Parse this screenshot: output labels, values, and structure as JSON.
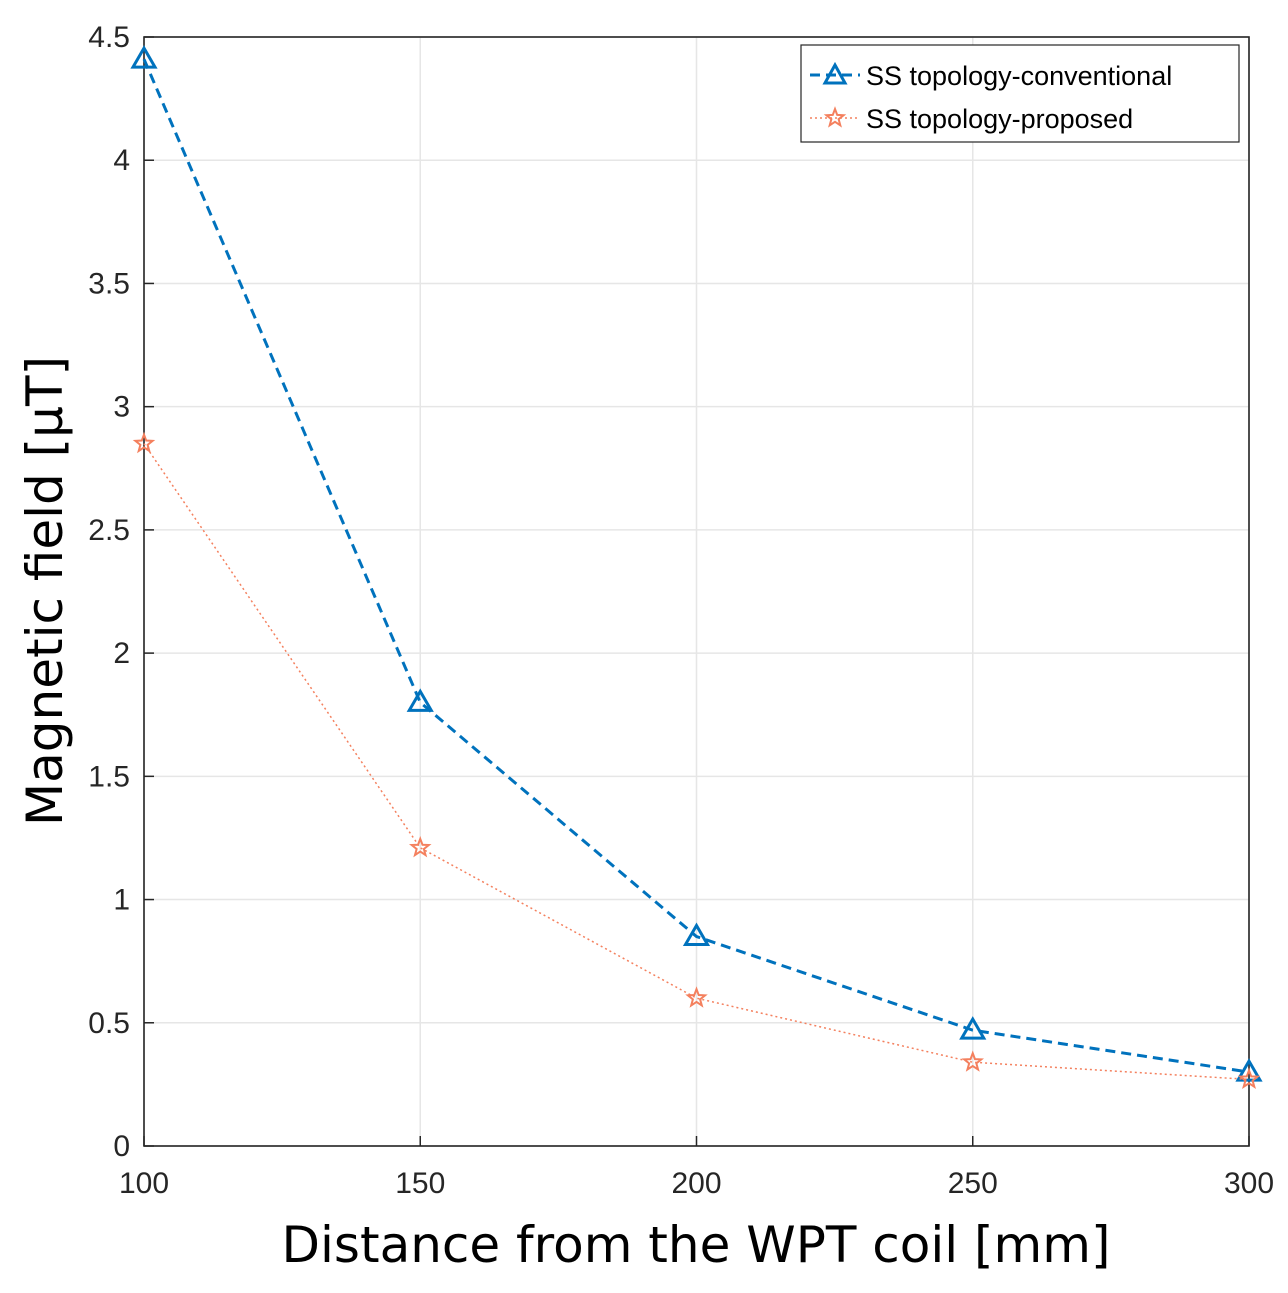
{
  "chart_data": {
    "type": "line",
    "title": "",
    "xlabel": "Distance from the WPT coil [mm]",
    "ylabel": "Magnetic field [μT]",
    "xlim": [
      100,
      300
    ],
    "ylim": [
      0,
      4.5
    ],
    "grid": true,
    "x": [
      100,
      150,
      200,
      250,
      300
    ],
    "xticks": [
      "100",
      "150",
      "200",
      "250",
      "300"
    ],
    "yticks": [
      "0",
      "0.5",
      "1",
      "1.5",
      "2",
      "2.5",
      "3",
      "3.5",
      "4",
      "4.5"
    ],
    "legend_position": "top-right",
    "series": [
      {
        "name": "SS topology-conventional",
        "values": [
          4.41,
          1.8,
          0.85,
          0.47,
          0.3
        ],
        "color": "#0072BD",
        "line_style": "dashed",
        "marker": "triangle"
      },
      {
        "name": "SS topology-proposed",
        "values": [
          2.85,
          1.21,
          0.6,
          0.34,
          0.27
        ],
        "color": "#F4805E",
        "line_style": "dotted",
        "marker": "star"
      }
    ]
  }
}
